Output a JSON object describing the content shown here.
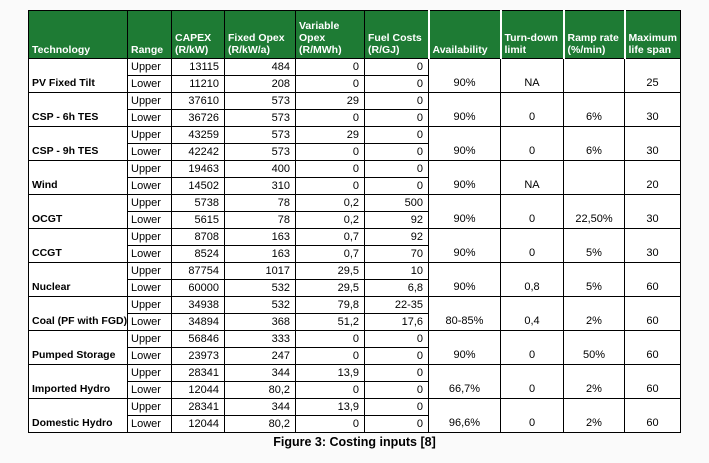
{
  "caption": "Figure 3: Costing inputs [8]",
  "colors": {
    "header_bg": "#1E7B34",
    "header_text": "#FFFFFF",
    "border": "#000000",
    "cell_bg": "#FFFFFF"
  },
  "table": {
    "headers": [
      "Technology",
      "Range",
      "CAPEX\n(R/kW)",
      "Fixed Opex\n(R/kW/a)",
      "Variable\nOpex\n(R/MWh)",
      "Fuel Costs\n(R/GJ)",
      "Availability",
      "Turn-down\nlimit",
      "Ramp rate\n(%/min)",
      "Maximum\nlife span"
    ],
    "range_labels": [
      "Upper",
      "Lower"
    ],
    "technologies": [
      {
        "name": "PV Fixed Tilt",
        "upper": [
          "13115",
          "484",
          "0",
          "0"
        ],
        "lower": [
          "11210",
          "208",
          "0",
          "0"
        ],
        "availability": "90%",
        "turn_down_limit": "NA",
        "ramp_rate": "",
        "max_life_span": "25"
      },
      {
        "name": "CSP - 6h TES",
        "upper": [
          "37610",
          "573",
          "29",
          "0"
        ],
        "lower": [
          "36726",
          "573",
          "0",
          "0"
        ],
        "availability": "90%",
        "turn_down_limit": "0",
        "ramp_rate": "6%",
        "max_life_span": "30"
      },
      {
        "name": "CSP - 9h TES",
        "upper": [
          "43259",
          "573",
          "29",
          "0"
        ],
        "lower": [
          "42242",
          "573",
          "0",
          "0"
        ],
        "availability": "90%",
        "turn_down_limit": "0",
        "ramp_rate": "6%",
        "max_life_span": "30"
      },
      {
        "name": "Wind",
        "upper": [
          "19463",
          "400",
          "0",
          "0"
        ],
        "lower": [
          "14502",
          "310",
          "0",
          "0"
        ],
        "availability": "90%",
        "turn_down_limit": "NA",
        "ramp_rate": "",
        "max_life_span": "20"
      },
      {
        "name": "OCGT",
        "upper": [
          "5738",
          "78",
          "0,2",
          "500"
        ],
        "lower": [
          "5615",
          "78",
          "0,2",
          "92"
        ],
        "availability": "90%",
        "turn_down_limit": "0",
        "ramp_rate": "22,50%",
        "max_life_span": "30"
      },
      {
        "name": "CCGT",
        "upper": [
          "8708",
          "163",
          "0,7",
          "92"
        ],
        "lower": [
          "8524",
          "163",
          "0,7",
          "70"
        ],
        "availability": "90%",
        "turn_down_limit": "0",
        "ramp_rate": "5%",
        "max_life_span": "30"
      },
      {
        "name": "Nuclear",
        "upper": [
          "87754",
          "1017",
          "29,5",
          "10"
        ],
        "lower": [
          "60000",
          "532",
          "29,5",
          "6,8"
        ],
        "availability": "90%",
        "turn_down_limit": "0,8",
        "ramp_rate": "5%",
        "max_life_span": "60"
      },
      {
        "name": "Coal (PF with FGD)",
        "upper": [
          "34938",
          "532",
          "79,8",
          "22-35"
        ],
        "lower": [
          "34894",
          "368",
          "51,2",
          "17,6"
        ],
        "availability": "80-85%",
        "turn_down_limit": "0,4",
        "ramp_rate": "2%",
        "max_life_span": "60"
      },
      {
        "name": "Pumped Storage",
        "upper": [
          "56846",
          "333",
          "0",
          "0"
        ],
        "lower": [
          "23973",
          "247",
          "0",
          "0"
        ],
        "availability": "90%",
        "turn_down_limit": "0",
        "ramp_rate": "50%",
        "max_life_span": "60"
      },
      {
        "name": "Imported Hydro",
        "upper": [
          "28341",
          "344",
          "13,9",
          "0"
        ],
        "lower": [
          "12044",
          "80,2",
          "0",
          "0"
        ],
        "availability": "66,7%",
        "turn_down_limit": "0",
        "ramp_rate": "2%",
        "max_life_span": "60"
      },
      {
        "name": "Domestic Hydro",
        "upper": [
          "28341",
          "344",
          "13,9",
          "0"
        ],
        "lower": [
          "12044",
          "80,2",
          "0",
          "0"
        ],
        "availability": "96,6%",
        "turn_down_limit": "0",
        "ramp_rate": "2%",
        "max_life_span": "60"
      }
    ]
  }
}
